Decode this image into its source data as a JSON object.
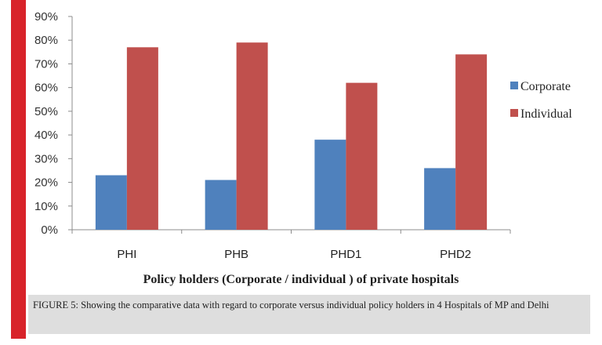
{
  "chart_data": {
    "type": "bar",
    "categories": [
      "PHI",
      "PHB",
      "PHD1",
      "PHD2"
    ],
    "series": [
      {
        "name": "Corporate",
        "values": [
          23,
          21,
          38,
          26
        ],
        "color": "#4f81bd"
      },
      {
        "name": "Individual",
        "values": [
          77,
          79,
          62,
          74
        ],
        "color": "#c0504d"
      }
    ],
    "ylim": [
      0,
      90
    ],
    "yticks": [
      "0%",
      "10%",
      "20%",
      "30%",
      "40%",
      "50%",
      "60%",
      "70%",
      "80%",
      "90%"
    ],
    "xlabel": "Policy holders (Corporate / individual ) of private hospitals",
    "ylabel": "",
    "title": "",
    "legend_position": "right",
    "grid": false
  },
  "caption": "FIGURE 5: Showing the comparative data with regard to corporate versus individual policy holders in 4 Hospitals of MP and Delhi",
  "accent_color": "#d8232a"
}
